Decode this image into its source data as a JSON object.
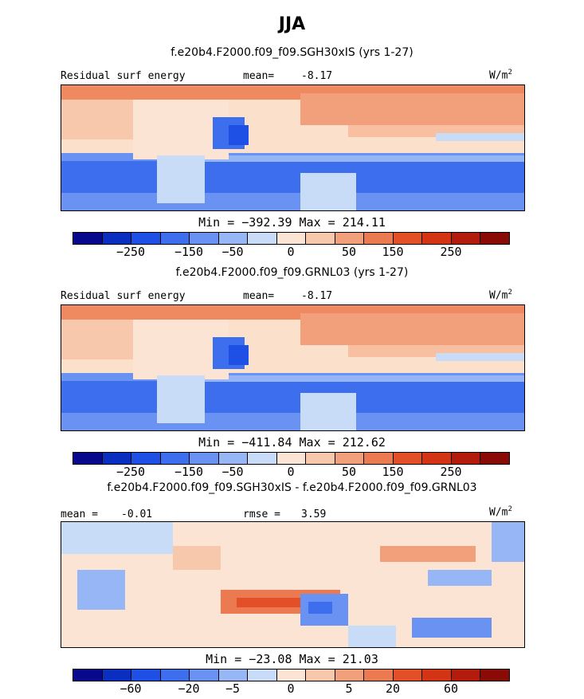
{
  "title": "JJA",
  "units": "W/m",
  "units_sup": "2",
  "palette": [
    "#08088c",
    "#0a2fc0",
    "#1e50e6",
    "#3c6eee",
    "#6a92f2",
    "#97b6f5",
    "#c8dcf8",
    "#fbe4d4",
    "#f8c8ac",
    "#f2a07c",
    "#ec7a50",
    "#e35028",
    "#d23414",
    "#b31c0c",
    "#8a0a06"
  ],
  "chart_data": [
    {
      "type": "heatmap",
      "title": "f.e20b4.F2000.f09_f09.SGH30xIS (yrs 1-27)",
      "left_label": "Residual surf energy",
      "stat_label": "mean=",
      "stat_value": "-8.17",
      "min_max_text": "Min = −392.39 Max = 214.11",
      "min": -392.39,
      "max": 214.11,
      "mean": -8.17,
      "colorbar_ticks": [
        "−250",
        "−150",
        "−50",
        "0",
        "50",
        "150",
        "250"
      ]
    },
    {
      "type": "heatmap",
      "title": "f.e20b4.F2000.f09_f09.GRNL03 (yrs 1-27)",
      "left_label": "Residual surf energy",
      "stat_label": "mean=",
      "stat_value": "-8.17",
      "min_max_text": "Min = −411.84 Max = 212.62",
      "min": -411.84,
      "max": 212.62,
      "mean": -8.17,
      "colorbar_ticks": [
        "−250",
        "−150",
        "−50",
        "0",
        "50",
        "150",
        "250"
      ]
    },
    {
      "type": "heatmap",
      "title": "f.e20b4.F2000.f09_f09.SGH30xIS - f.e20b4.F2000.f09_f09.GRNL03",
      "left_label": "mean =",
      "left_value": "-0.01",
      "stat_label": "rmse =",
      "stat_value": "3.59",
      "min_max_text": "Min = −23.08 Max = 21.03",
      "min": -23.08,
      "max": 21.03,
      "mean": -0.01,
      "rmse": 3.59,
      "colorbar_ticks": [
        "−60",
        "−20",
        "−5",
        "0",
        "5",
        "20",
        "60"
      ]
    }
  ]
}
